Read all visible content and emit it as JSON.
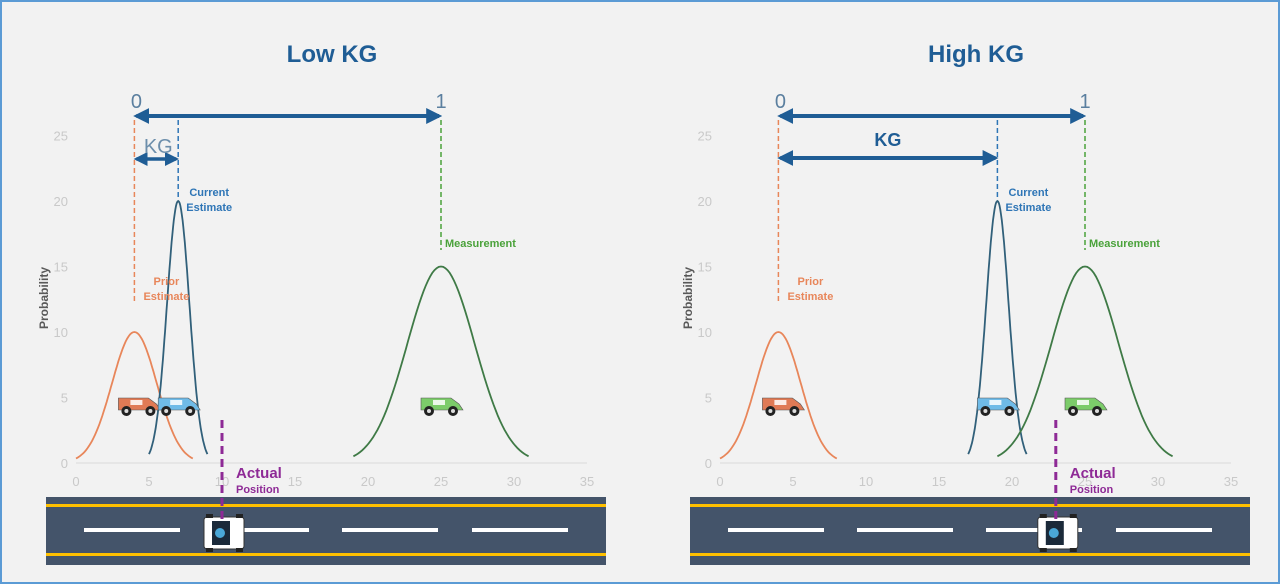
{
  "panels": [
    {
      "title": "Low KG",
      "scale_start_label": "0",
      "scale_end_label": "1",
      "kg_label": "KG",
      "kg_style": "light",
      "labels": {
        "current": [
          "Current",
          "Estimate"
        ],
        "prior": [
          "Prior",
          "Estimate"
        ],
        "measurement": "Measurement",
        "actual": "Actual",
        "position": "Position"
      },
      "chart_data": {
        "type": "line",
        "ylabel": "Probability",
        "x_ticks": [
          0,
          5,
          10,
          15,
          20,
          25,
          30,
          35
        ],
        "y_ticks": [
          0,
          5,
          10,
          15,
          20,
          25
        ],
        "xlim": [
          0,
          35
        ],
        "ylim": [
          0,
          25
        ],
        "series": [
          {
            "id": "prior",
            "mean": 4,
            "peak": 10,
            "x_range": [
              0,
              8
            ],
            "color": "#e8865a"
          },
          {
            "id": "current",
            "mean": 7,
            "peak": 20,
            "x_range": [
              5,
              9
            ],
            "color": "#31607a"
          },
          {
            "id": "measurement",
            "mean": 25,
            "peak": 15,
            "x_range": [
              19,
              31
            ],
            "color": "#3f7a46"
          }
        ],
        "actual_position": 10
      }
    },
    {
      "title": "High KG",
      "scale_start_label": "0",
      "scale_end_label": "1",
      "kg_label": "KG",
      "kg_style": "bold",
      "labels": {
        "current": [
          "Current",
          "Estimate"
        ],
        "prior": [
          "Prior",
          "Estimate"
        ],
        "measurement": "Measurement",
        "actual": "Actual",
        "position": "Position"
      },
      "chart_data": {
        "type": "line",
        "ylabel": "Probability",
        "x_ticks": [
          0,
          5,
          10,
          15,
          20,
          25,
          30,
          35
        ],
        "y_ticks": [
          0,
          5,
          10,
          15,
          20,
          25
        ],
        "xlim": [
          0,
          35
        ],
        "ylim": [
          0,
          25
        ],
        "series": [
          {
            "id": "prior",
            "mean": 4,
            "peak": 10,
            "x_range": [
              0,
              8
            ],
            "color": "#e8865a"
          },
          {
            "id": "current",
            "mean": 19,
            "peak": 20,
            "x_range": [
              17,
              21
            ],
            "color": "#31607a"
          },
          {
            "id": "measurement",
            "mean": 25,
            "peak": 15,
            "x_range": [
              19,
              31
            ],
            "color": "#3f7a46"
          }
        ],
        "actual_position": 23
      }
    }
  ],
  "colors": {
    "title": "#1f5d95",
    "scale_arrow": "#1f5d95",
    "prior": "#e8865a",
    "current_label": "#2e75b6",
    "measurement_label": "#4aa23a",
    "actual": "#8e2a96",
    "road": "#44546a",
    "road_edge": "#ffc000",
    "lane": "#ffffff",
    "axis_text": "#c9c9c9"
  }
}
